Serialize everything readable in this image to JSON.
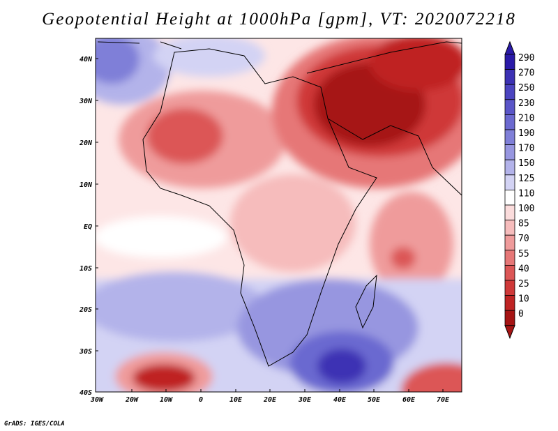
{
  "title": "Geopotential Height at 1000hPa [gpm], VT: 2020072218",
  "footer": "GrADS: IGES/COLA",
  "map": {
    "lat_labels": [
      "40N",
      "30N",
      "20N",
      "10N",
      "EQ",
      "10S",
      "20S",
      "30S",
      "40S"
    ],
    "lon_labels": [
      "30W",
      "20W",
      "10W",
      "0",
      "10E",
      "20E",
      "30E",
      "40E",
      "50E",
      "60E",
      "70E"
    ],
    "lon_range": [
      -30,
      77
    ],
    "lat_range": [
      -40,
      45
    ]
  },
  "colorbar": {
    "levels": [
      "290",
      "270",
      "250",
      "230",
      "210",
      "190",
      "170",
      "150",
      "125",
      "110",
      "100",
      "85",
      "70",
      "55",
      "40",
      "25",
      "10",
      "0"
    ],
    "colors": [
      "#2a1aa8",
      "#3c31b4",
      "#4b44c0",
      "#5a55c8",
      "#6b69d0",
      "#7f7fd8",
      "#9796e0",
      "#b3b3ea",
      "#d3d3f4",
      "#ffffff",
      "#fbdcdc",
      "#f6bcbc",
      "#ef9b9b",
      "#e67777",
      "#dc5656",
      "#cf3939",
      "#bf2424",
      "#a61414"
    ]
  }
}
